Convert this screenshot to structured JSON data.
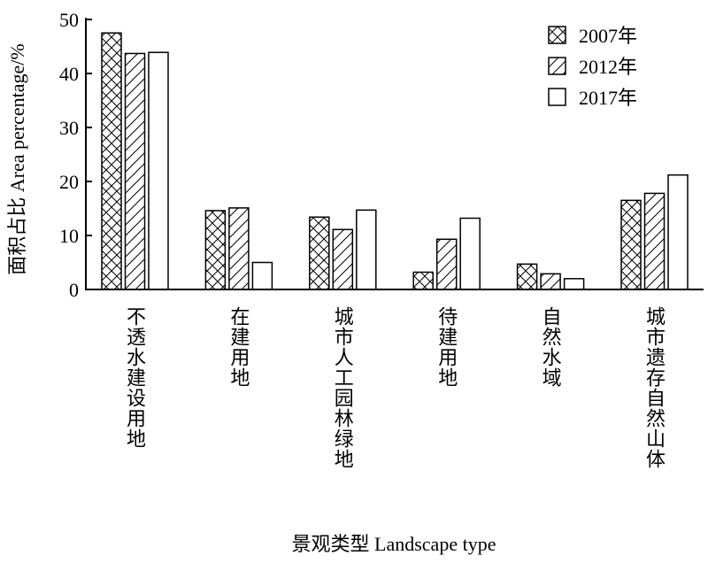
{
  "chart_data": {
    "type": "bar",
    "ylabel": "面积占比 Area percentage/%",
    "xlabel": "景观类型 Landscape type",
    "ylim": [
      0,
      50
    ],
    "yticks": [
      "0",
      "10",
      "20",
      "30",
      "40",
      "50"
    ],
    "categories": [
      "不透水建设用地",
      "在建用地",
      "城市人工园林绿地",
      "待建用地",
      "自然水域",
      "城市遗存自然山体"
    ],
    "series": [
      {
        "name": "2007年",
        "pattern": "crosshatch",
        "values": [
          47.5,
          14.6,
          13.4,
          3.2,
          4.7,
          16.5
        ]
      },
      {
        "name": "2012年",
        "pattern": "diagonal",
        "values": [
          43.7,
          15.1,
          11.1,
          9.3,
          2.9,
          17.8
        ]
      },
      {
        "name": "2017年",
        "pattern": "empty",
        "values": [
          43.9,
          5.0,
          14.7,
          13.2,
          2.0,
          21.2
        ]
      }
    ],
    "legend_position": "top-right",
    "grid": false,
    "colors": {
      "stroke": "#000000",
      "fill": "#ffffff"
    }
  }
}
